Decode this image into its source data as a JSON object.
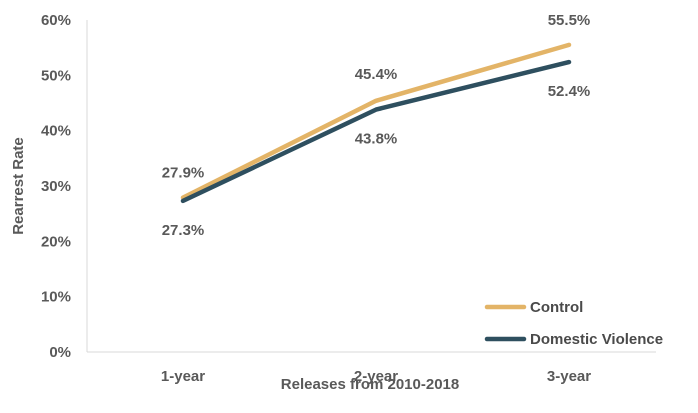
{
  "chart_data": {
    "type": "line",
    "title": "",
    "xlabel": "Releases from 2010-2018",
    "ylabel": "Rearrest Rate",
    "categories": [
      "1-year",
      "2-year",
      "3-year"
    ],
    "ylim": [
      0,
      60
    ],
    "yticks": [
      "0%",
      "10%",
      "20%",
      "30%",
      "40%",
      "50%",
      "60%"
    ],
    "grid": false,
    "legend_position": "bottom-right",
    "series": [
      {
        "name": "Control",
        "color": "#E3B467",
        "values": [
          27.9,
          45.4,
          55.5
        ],
        "labels": [
          "27.9%",
          "45.4%",
          "55.5%"
        ]
      },
      {
        "name": "Domestic Violence",
        "color": "#2E4F5F",
        "values": [
          27.3,
          43.8,
          52.4
        ],
        "labels": [
          "27.3%",
          "43.8%",
          "52.4%"
        ]
      }
    ]
  }
}
